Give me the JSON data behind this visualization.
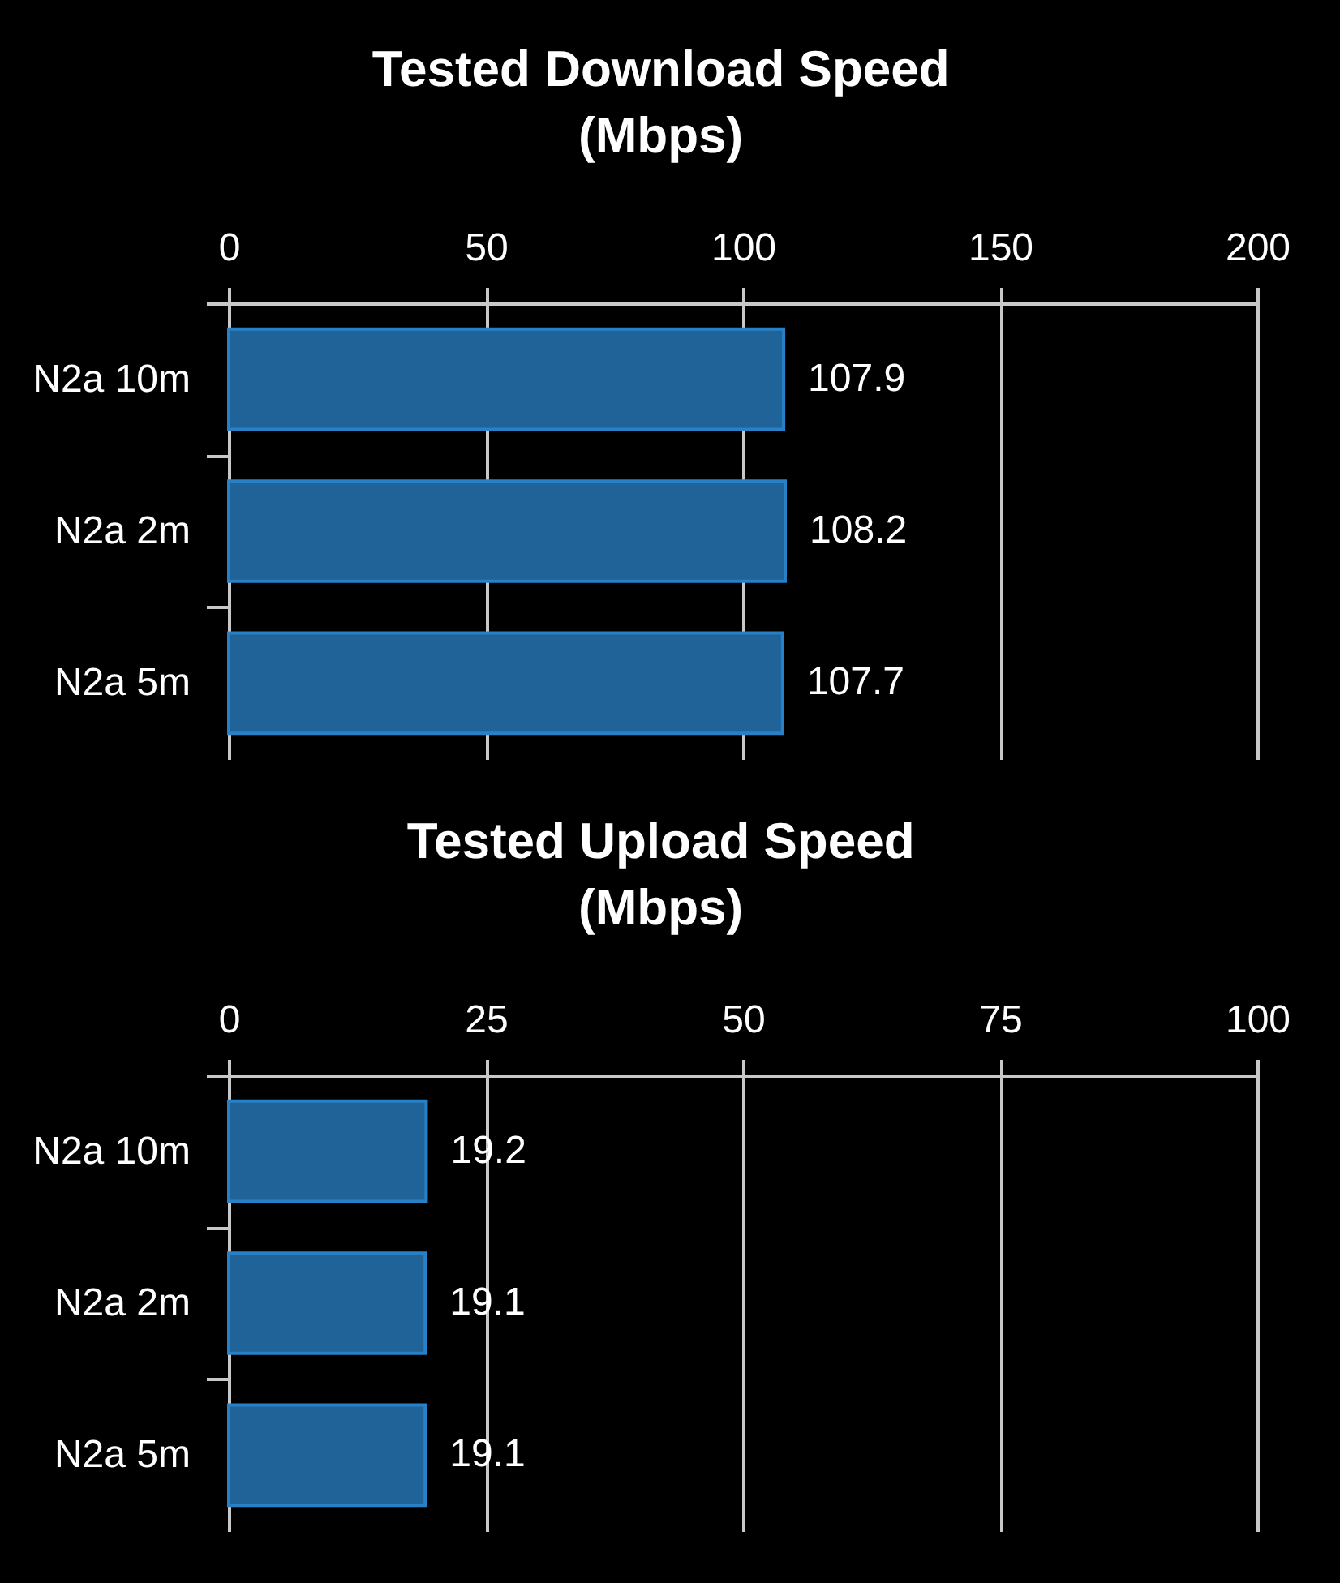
{
  "chart_data": [
    {
      "type": "bar",
      "orientation": "horizontal",
      "title": "Tested Download Speed (Mbps)",
      "categories": [
        "N2a 10m",
        "N2a 2m",
        "N2a 5m"
      ],
      "values": [
        107.9,
        108.2,
        107.7
      ],
      "color": "#1f6399",
      "xlim": [
        0,
        200
      ],
      "xticks": [
        0,
        50,
        100,
        150,
        200
      ],
      "grid": "x",
      "data_labels": true
    },
    {
      "type": "bar",
      "orientation": "horizontal",
      "title": "Tested Upload Speed (Mbps)",
      "categories": [
        "N2a 10m",
        "N2a 2m",
        "N2a 5m"
      ],
      "values": [
        19.2,
        19.1,
        19.1
      ],
      "color": "#1f6399",
      "xlim": [
        0,
        100
      ],
      "xticks": [
        0,
        25,
        50,
        75,
        100
      ],
      "grid": "x",
      "data_labels": true
    }
  ]
}
